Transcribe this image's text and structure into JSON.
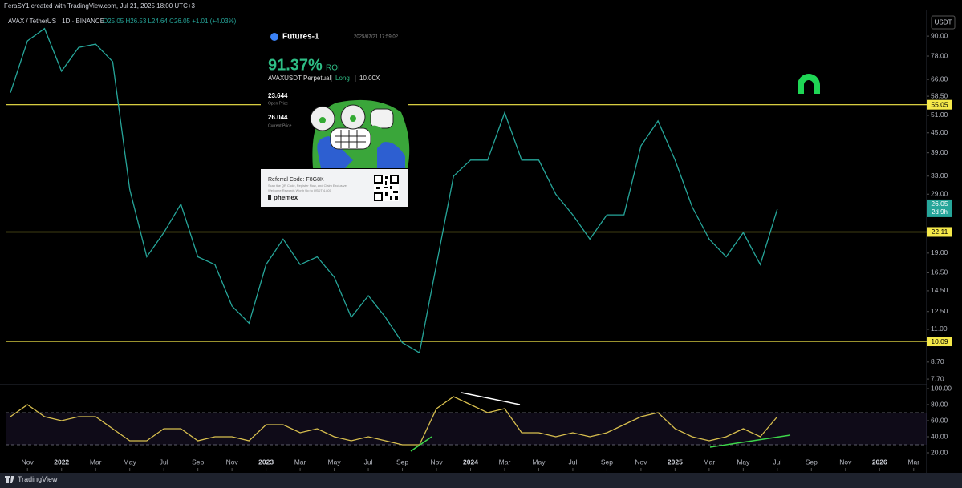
{
  "header": {
    "credit": "FeraSY1 created with TradingView.com, Jul 21, 2025 18:00 UTC+3",
    "symbol": "AVAX / TetherUS · 1D · BINANCE",
    "ohlc": "O25.05 H26.53 L24.64 C26.05 +1.01 (+4.03%)",
    "currency": "USDT"
  },
  "card": {
    "title": "Futures-1",
    "timestamp": "2025/07/21 17:59:02",
    "roi": "91.37%",
    "roi_label": "ROI",
    "contract": "AVAXUSDT Perpetual",
    "side": "Long",
    "leverage": "10.00X",
    "open_price": "23.644",
    "open_label": "Open Price",
    "current_price": "26.044",
    "current_label": "Current Price",
    "referral": "Referral Code: F8G8K",
    "promo_1": "Scan the QR Code, Register Now, and Claim Exclusive",
    "promo_2": "Welcome Rewards Worth Up to USDT 4,800",
    "brand": "phemex"
  },
  "footer": {
    "brand": "TradingView"
  },
  "chart_data": [
    {
      "type": "line",
      "log_scale": true,
      "color": "#26a69a",
      "x": [
        "2021-10",
        "2021-11",
        "2021-12",
        "2022-01",
        "2022-02",
        "2022-03",
        "2022-04",
        "2022-05",
        "2022-06",
        "2022-07",
        "2022-08",
        "2022-09",
        "2022-10",
        "2022-11",
        "2022-12",
        "2023-01",
        "2023-02",
        "2023-03",
        "2023-04",
        "2023-05",
        "2023-06",
        "2023-07",
        "2023-08",
        "2023-09",
        "2023-10",
        "2023-11",
        "2023-12",
        "2024-01",
        "2024-02",
        "2024-03",
        "2024-04",
        "2024-05",
        "2024-06",
        "2024-07",
        "2024-08",
        "2024-09",
        "2024-10",
        "2024-11",
        "2024-12",
        "2025-01",
        "2025-02",
        "2025-03",
        "2025-04",
        "2025-05",
        "2025-06",
        "2025-07"
      ],
      "values": [
        60,
        87,
        95,
        70,
        83,
        85,
        75,
        30,
        18.5,
        22,
        27,
        18.5,
        17.5,
        13,
        11.5,
        17.5,
        21,
        17.5,
        18.5,
        16,
        12,
        14,
        12,
        10,
        9.3,
        17.5,
        33,
        37,
        37,
        52,
        37,
        37,
        29,
        25,
        21,
        25,
        25,
        41,
        49,
        37,
        26.5,
        21,
        18.5,
        22,
        17.5,
        26.05
      ],
      "xlim": [
        "2021-10",
        "2026-04"
      ],
      "ylim": [
        7.4,
        107
      ],
      "yticks": [
        {
          "value": 90,
          "label": "90.00"
        },
        {
          "value": 78,
          "label": "78.00"
        },
        {
          "value": 66,
          "label": "66.00"
        },
        {
          "value": 58.5,
          "label": "58.50"
        },
        {
          "value": 51,
          "label": "51.00"
        },
        {
          "value": 45,
          "label": "45.00"
        },
        {
          "value": 39,
          "label": "39.00"
        },
        {
          "value": 33,
          "label": "33.00"
        },
        {
          "value": 29,
          "label": "29.00"
        },
        {
          "value": 19,
          "label": "19.00"
        },
        {
          "value": 16.5,
          "label": "16.50"
        },
        {
          "value": 14.5,
          "label": "14.50"
        },
        {
          "value": 12.5,
          "label": "12.50"
        },
        {
          "value": 11,
          "label": "11.00"
        },
        {
          "value": 8.7,
          "label": "8.70"
        },
        {
          "value": 7.7,
          "label": "7.70"
        }
      ],
      "levels": [
        55.05,
        22.11,
        10.09
      ],
      "level_color": "#f5e94a",
      "last_price": 26.05,
      "countdown": "2d 9h"
    },
    {
      "type": "line",
      "color": "#d8bf4e",
      "x": [
        "2021-10",
        "2021-11",
        "2021-12",
        "2022-01",
        "2022-02",
        "2022-03",
        "2022-04",
        "2022-05",
        "2022-06",
        "2022-07",
        "2022-08",
        "2022-09",
        "2022-10",
        "2022-11",
        "2022-12",
        "2023-01",
        "2023-02",
        "2023-03",
        "2023-04",
        "2023-05",
        "2023-06",
        "2023-07",
        "2023-08",
        "2023-09",
        "2023-10",
        "2023-11",
        "2023-12",
        "2024-01",
        "2024-02",
        "2024-03",
        "2024-04",
        "2024-05",
        "2024-06",
        "2024-07",
        "2024-08",
        "2024-09",
        "2024-10",
        "2024-11",
        "2024-12",
        "2025-01",
        "2025-02",
        "2025-03",
        "2025-04",
        "2025-05",
        "2025-06",
        "2025-07"
      ],
      "values": [
        65,
        80,
        65,
        60,
        65,
        65,
        50,
        35,
        35,
        50,
        50,
        35,
        40,
        40,
        35,
        55,
        55,
        45,
        50,
        40,
        35,
        40,
        35,
        30,
        30,
        75,
        90,
        80,
        70,
        75,
        45,
        45,
        40,
        45,
        40,
        45,
        55,
        65,
        70,
        50,
        40,
        35,
        40,
        50,
        40,
        65
      ],
      "xlim": [
        "2021-10",
        "2026-04"
      ],
      "ylim": [
        15,
        105
      ],
      "bands": [
        30,
        70
      ],
      "yticks": [
        {
          "value": 100,
          "label": "100.00"
        },
        {
          "value": 80,
          "label": "80.00"
        },
        {
          "value": 60,
          "label": "60.00"
        },
        {
          "value": 40,
          "label": "40.00"
        },
        {
          "value": 20,
          "label": "20.00"
        }
      ],
      "xticks": [
        {
          "value": "2021-11",
          "label": "Nov"
        },
        {
          "value": "2022-01",
          "label": "2022"
        },
        {
          "value": "2022-03",
          "label": "Mar"
        },
        {
          "value": "2022-05",
          "label": "May"
        },
        {
          "value": "2022-07",
          "label": "Jul"
        },
        {
          "value": "2022-09",
          "label": "Sep"
        },
        {
          "value": "2022-11",
          "label": "Nov"
        },
        {
          "value": "2023-01",
          "label": "2023"
        },
        {
          "value": "2023-03",
          "label": "Mar"
        },
        {
          "value": "2023-05",
          "label": "May"
        },
        {
          "value": "2023-07",
          "label": "Jul"
        },
        {
          "value": "2023-09",
          "label": "Sep"
        },
        {
          "value": "2023-11",
          "label": "Nov"
        },
        {
          "value": "2024-01",
          "label": "2024"
        },
        {
          "value": "2024-03",
          "label": "Mar"
        },
        {
          "value": "2024-05",
          "label": "May"
        },
        {
          "value": "2024-07",
          "label": "Jul"
        },
        {
          "value": "2024-09",
          "label": "Sep"
        },
        {
          "value": "2024-11",
          "label": "Nov"
        },
        {
          "value": "2025-01",
          "label": "2025"
        },
        {
          "value": "2025-03",
          "label": "Mar"
        },
        {
          "value": "2025-05",
          "label": "May"
        },
        {
          "value": "2025-07",
          "label": "Jul"
        },
        {
          "value": "2025-09",
          "label": "Sep"
        },
        {
          "value": "2025-11",
          "label": "Nov"
        },
        {
          "value": "2026-01",
          "label": "2026"
        },
        {
          "value": "2026-03",
          "label": "Mar"
        }
      ]
    }
  ]
}
